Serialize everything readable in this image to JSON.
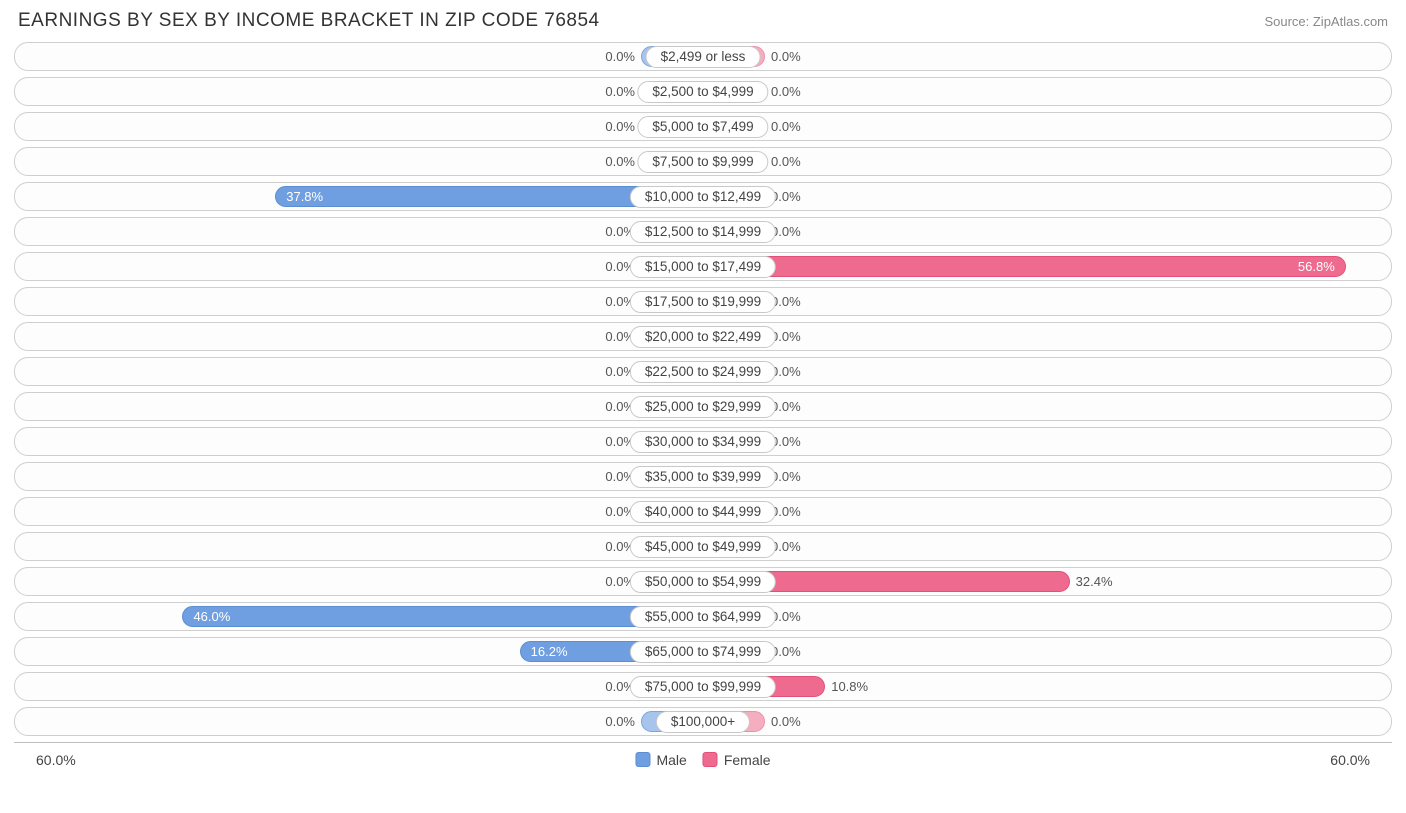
{
  "title": "EARNINGS BY SEX BY INCOME BRACKET IN ZIP CODE 76854",
  "source": "Source: ZipAtlas.com",
  "chart": {
    "type": "diverging-bar",
    "axis_max": 60.0,
    "axis_label_left": "60.0%",
    "axis_label_right": "60.0%",
    "row_border_color": "#cfcfcf",
    "row_bg": "#fdfdfd",
    "male_bar_color": "#6f9fe0",
    "male_bar_border": "#5a8dd2",
    "male_stub_color": "#a7c4ec",
    "male_stub_border": "#7aa6de",
    "female_bar_color": "#ee6a8e",
    "female_bar_border": "#e25079",
    "female_stub_color": "#f5aec0",
    "female_stub_border": "#ef8fa9",
    "label_pill_bg": "#ffffff",
    "label_pill_border": "#c8c8c8",
    "value_text_color": "#555",
    "bar_inner_text_color": "#ffffff",
    "footer_border": "#bdbdbd",
    "legend": {
      "male": "Male",
      "female": "Female"
    },
    "rows": [
      {
        "label": "$2,499 or less",
        "male": 0.0,
        "female": 0.0
      },
      {
        "label": "$2,500 to $4,999",
        "male": 0.0,
        "female": 0.0
      },
      {
        "label": "$5,000 to $7,499",
        "male": 0.0,
        "female": 0.0
      },
      {
        "label": "$7,500 to $9,999",
        "male": 0.0,
        "female": 0.0
      },
      {
        "label": "$10,000 to $12,499",
        "male": 37.8,
        "female": 0.0
      },
      {
        "label": "$12,500 to $14,999",
        "male": 0.0,
        "female": 0.0
      },
      {
        "label": "$15,000 to $17,499",
        "male": 0.0,
        "female": 56.8
      },
      {
        "label": "$17,500 to $19,999",
        "male": 0.0,
        "female": 0.0
      },
      {
        "label": "$20,000 to $22,499",
        "male": 0.0,
        "female": 0.0
      },
      {
        "label": "$22,500 to $24,999",
        "male": 0.0,
        "female": 0.0
      },
      {
        "label": "$25,000 to $29,999",
        "male": 0.0,
        "female": 0.0
      },
      {
        "label": "$30,000 to $34,999",
        "male": 0.0,
        "female": 0.0
      },
      {
        "label": "$35,000 to $39,999",
        "male": 0.0,
        "female": 0.0
      },
      {
        "label": "$40,000 to $44,999",
        "male": 0.0,
        "female": 0.0
      },
      {
        "label": "$45,000 to $49,999",
        "male": 0.0,
        "female": 0.0
      },
      {
        "label": "$50,000 to $54,999",
        "male": 0.0,
        "female": 32.4
      },
      {
        "label": "$55,000 to $64,999",
        "male": 46.0,
        "female": 0.0
      },
      {
        "label": "$65,000 to $74,999",
        "male": 16.2,
        "female": 0.0
      },
      {
        "label": "$75,000 to $99,999",
        "male": 0.0,
        "female": 10.8
      },
      {
        "label": "$100,000+",
        "male": 0.0,
        "female": 0.0
      }
    ]
  }
}
